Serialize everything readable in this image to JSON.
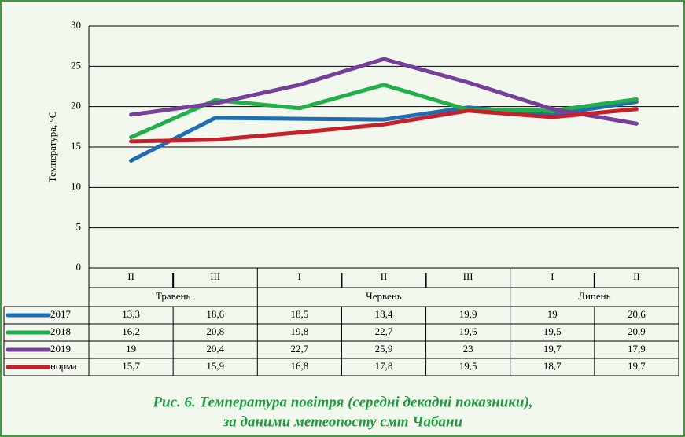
{
  "chart_data": {
    "type": "line",
    "y_label": "Температура, °С",
    "groups": [
      {
        "label": "Травень",
        "categories": [
          "II",
          "III"
        ]
      },
      {
        "label": "Червень",
        "categories": [
          "I",
          "II",
          "III"
        ]
      },
      {
        "label": "Липень",
        "categories": [
          "I",
          "II"
        ]
      }
    ],
    "series": [
      {
        "name": "2017",
        "color": "#1f6db3",
        "values": [
          13.3,
          18.6,
          18.5,
          18.4,
          19.9,
          19,
          20.6
        ],
        "value_labels": [
          "13,3",
          "18,6",
          "18,5",
          "18,4",
          "19,9",
          "19",
          "20,6"
        ]
      },
      {
        "name": "2018",
        "color": "#22ae4a",
        "values": [
          16.2,
          20.8,
          19.8,
          22.7,
          19.6,
          19.5,
          20.9
        ],
        "value_labels": [
          "16,2",
          "20,8",
          "19,8",
          "22,7",
          "19,6",
          "19,5",
          "20,9"
        ]
      },
      {
        "name": "2019",
        "color": "#763f9c",
        "values": [
          19,
          20.4,
          22.7,
          25.9,
          23,
          19.7,
          17.9
        ],
        "value_labels": [
          "19",
          "20,4",
          "22,7",
          "25,9",
          "23",
          "19,7",
          "17,9"
        ]
      },
      {
        "name": "норма",
        "color": "#c8202a",
        "values": [
          15.7,
          15.9,
          16.8,
          17.8,
          19.5,
          18.7,
          19.7
        ],
        "value_labels": [
          "15,7",
          "15,9",
          "16,8",
          "17,8",
          "19,5",
          "18,7",
          "19,7"
        ]
      }
    ],
    "ylim": [
      0,
      30
    ],
    "yticks": [
      0,
      5,
      10,
      15,
      20,
      25,
      30
    ],
    "grid": true,
    "caption": [
      "Рис. 6. Температура повітря (середні декадні показники),",
      "за даними метеопосту смт Чабани"
    ]
  }
}
